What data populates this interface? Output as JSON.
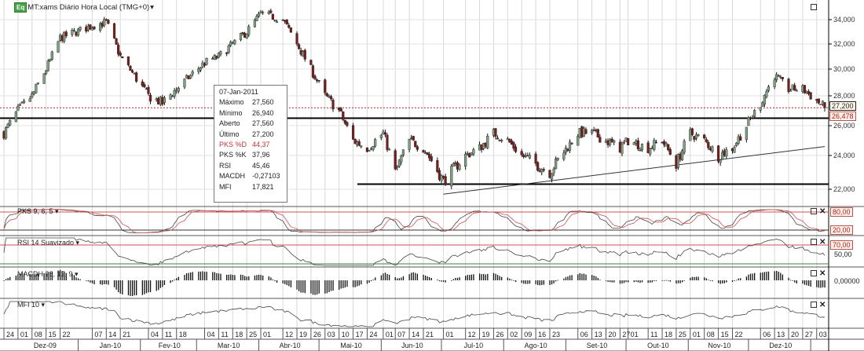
{
  "header": {
    "badge": "Eq",
    "title": "MT:xams Diário Hora Local (TMG+0)",
    "dropdown_icon": "▾"
  },
  "tooltip": {
    "date": "07-Jan-2011",
    "rows": [
      {
        "label": "Máximo",
        "value": "27,560"
      },
      {
        "label": "Mínimo",
        "value": "26,940"
      },
      {
        "label": "Aberto",
        "value": "27,560"
      },
      {
        "label": "Último",
        "value": "27,200"
      },
      {
        "label": "PKS %D",
        "value": "44,37",
        "highlight": true
      },
      {
        "label": "PKS %K",
        "value": "37,96"
      },
      {
        "label": "RSI",
        "value": "45,46"
      },
      {
        "label": "MACDH",
        "value": "-0,27103"
      },
      {
        "label": "MFI",
        "value": "17,821"
      }
    ]
  },
  "price_labels": {
    "last": "27,200",
    "current": "26,478"
  },
  "panels": {
    "pks": {
      "label": "PKS 9, 6, 5 ▾",
      "upper": "80,00",
      "lower": "20,00"
    },
    "rsi": {
      "label": "RSI 14 Suavizado ▾",
      "upper": "70,00",
      "mid": "50,00"
    },
    "macdh": {
      "label": "MACDH 26, 12, 9 ▾",
      "zero": "0,00000"
    },
    "mfi": {
      "label": "MFI 10 ▾"
    }
  },
  "colors": {
    "up": "#7f9f82",
    "down": "#7a1c1c",
    "red_line": "#d05050",
    "green_line": "#3a8a3a"
  },
  "chart_data": {
    "type": "candlestick",
    "title": "MT:xams Diário Hora Local (TMG+0)",
    "ylim": [
      21000,
      35500
    ],
    "y_ticks": [
      "22,000",
      "24,000",
      "26,000",
      "28,000",
      "30,000",
      "32,000",
      "34,000"
    ],
    "y_tick_values": [
      22000,
      24000,
      26000,
      28000,
      30000,
      32000,
      34000
    ],
    "start_date": "2009-11-24",
    "end_date": "2011-01-07",
    "weekly_closes": [
      [
        "2009-11-24",
        25500
      ],
      [
        "2009-12-01",
        27000
      ],
      [
        "2009-12-08",
        28000
      ],
      [
        "2009-12-15",
        30000
      ],
      [
        "2009-12-22",
        32500
      ],
      [
        "2010-01-07",
        33500
      ],
      [
        "2010-01-14",
        33800
      ],
      [
        "2010-01-21",
        31000
      ],
      [
        "2010-02-04",
        28000
      ],
      [
        "2010-02-11",
        27500
      ],
      [
        "2010-02-18",
        28500
      ],
      [
        "2010-03-04",
        30500
      ],
      [
        "2010-03-11",
        31000
      ],
      [
        "2010-03-18",
        32000
      ],
      [
        "2010-03-25",
        33000
      ],
      [
        "2010-04-01",
        34500
      ],
      [
        "2010-04-12",
        34000
      ],
      [
        "2010-04-19",
        32000
      ],
      [
        "2010-04-26",
        30000
      ],
      [
        "2010-05-03",
        28000
      ],
      [
        "2010-05-10",
        27000
      ],
      [
        "2010-05-17",
        25000
      ],
      [
        "2010-05-24",
        24500
      ],
      [
        "2010-06-01",
        25500
      ],
      [
        "2010-06-07",
        23000
      ],
      [
        "2010-06-14",
        25000
      ],
      [
        "2010-06-21",
        24500
      ],
      [
        "2010-07-01",
        22500
      ],
      [
        "2010-07-12",
        24000
      ],
      [
        "2010-07-19",
        24500
      ],
      [
        "2010-07-26",
        25500
      ],
      [
        "2010-08-02",
        25000
      ],
      [
        "2010-08-09",
        24000
      ],
      [
        "2010-08-16",
        23500
      ],
      [
        "2010-08-23",
        23000
      ],
      [
        "2010-09-06",
        25500
      ],
      [
        "2010-09-13",
        25500
      ],
      [
        "2010-09-20",
        25000
      ],
      [
        "2010-09-27",
        24500
      ],
      [
        "2010-10-01",
        25000
      ],
      [
        "2010-10-11",
        24500
      ],
      [
        "2010-10-18",
        25000
      ],
      [
        "2010-10-25",
        23500
      ],
      [
        "2010-11-01",
        25500
      ],
      [
        "2010-11-08",
        25000
      ],
      [
        "2010-11-15",
        24000
      ],
      [
        "2010-11-22",
        24500
      ],
      [
        "2010-12-06",
        27500
      ],
      [
        "2010-12-13",
        29500
      ],
      [
        "2010-12-20",
        28500
      ],
      [
        "2010-12-27",
        28500
      ],
      [
        "2011-01-07",
        27200
      ]
    ],
    "horizontal_levels": [
      26500,
      22300
    ],
    "trendline": [
      [
        "2010-07-01",
        21700
      ],
      [
        "2011-01-07",
        24600
      ]
    ],
    "x_day_ticks": [
      [
        "2009-11-24",
        "24"
      ],
      [
        "2009-12-01",
        "01"
      ],
      [
        "2009-12-08",
        "08"
      ],
      [
        "2009-12-15",
        "15"
      ],
      [
        "2009-12-22",
        "22"
      ],
      [
        "2010-01-07",
        "07"
      ],
      [
        "2010-01-14",
        "14"
      ],
      [
        "2010-01-21",
        "21"
      ],
      [
        "2010-02-04",
        "04"
      ],
      [
        "2010-02-11",
        "11"
      ],
      [
        "2010-02-18",
        "18"
      ],
      [
        "2010-03-04",
        "04"
      ],
      [
        "2010-03-11",
        "11"
      ],
      [
        "2010-03-18",
        "18"
      ],
      [
        "2010-03-25",
        "25"
      ],
      [
        "2010-04-01",
        "01"
      ],
      [
        "2010-04-12",
        "12"
      ],
      [
        "2010-04-19",
        "19"
      ],
      [
        "2010-04-26",
        "26"
      ],
      [
        "2010-05-03",
        "03"
      ],
      [
        "2010-05-10",
        "10"
      ],
      [
        "2010-05-17",
        "17"
      ],
      [
        "2010-05-24",
        "24"
      ],
      [
        "2010-06-01",
        "01"
      ],
      [
        "2010-06-07",
        "07"
      ],
      [
        "2010-06-14",
        "14"
      ],
      [
        "2010-06-21",
        "21"
      ],
      [
        "2010-07-01",
        "01"
      ],
      [
        "2010-07-12",
        "12"
      ],
      [
        "2010-07-19",
        "19"
      ],
      [
        "2010-07-26",
        "26"
      ],
      [
        "2010-08-02",
        "02"
      ],
      [
        "2010-08-09",
        "09"
      ],
      [
        "2010-08-16",
        "16"
      ],
      [
        "2010-08-23",
        "23"
      ],
      [
        "2010-09-06",
        "06"
      ],
      [
        "2010-09-13",
        "13"
      ],
      [
        "2010-09-20",
        "20"
      ],
      [
        "2010-09-27",
        "27"
      ],
      [
        "2010-10-01",
        "01"
      ],
      [
        "2010-10-11",
        "11"
      ],
      [
        "2010-10-18",
        "18"
      ],
      [
        "2010-10-25",
        "25"
      ],
      [
        "2010-11-01",
        "01"
      ],
      [
        "2010-11-08",
        "08"
      ],
      [
        "2010-11-15",
        "15"
      ],
      [
        "2010-11-22",
        "22"
      ],
      [
        "2010-12-06",
        "06"
      ],
      [
        "2010-12-13",
        "13"
      ],
      [
        "2010-12-20",
        "20"
      ],
      [
        "2010-12-27",
        "27"
      ],
      [
        "2011-01-03",
        "03"
      ]
    ],
    "x_month_ticks": [
      [
        "2009-11-28",
        "2009-12-31",
        "Dez-09"
      ],
      [
        "2010-01-01",
        "2010-01-31",
        "Jan-10"
      ],
      [
        "2010-02-01",
        "2010-02-28",
        "Fev-10"
      ],
      [
        "2010-03-01",
        "2010-03-31",
        "Mar-10"
      ],
      [
        "2010-04-01",
        "2010-04-30",
        "Abr-10"
      ],
      [
        "2010-05-01",
        "2010-05-31",
        "Mai-10"
      ],
      [
        "2010-06-01",
        "2010-06-30",
        "Jun-10"
      ],
      [
        "2010-07-01",
        "2010-07-31",
        "Jul-10"
      ],
      [
        "2010-08-01",
        "2010-08-31",
        "Ago-10"
      ],
      [
        "2010-09-01",
        "2010-09-30",
        "Set-10"
      ],
      [
        "2010-10-01",
        "2010-10-31",
        "Out-10"
      ],
      [
        "2010-11-01",
        "2010-11-30",
        "Nov-10"
      ],
      [
        "2010-12-01",
        "2010-12-31",
        "Dez-10"
      ]
    ]
  }
}
